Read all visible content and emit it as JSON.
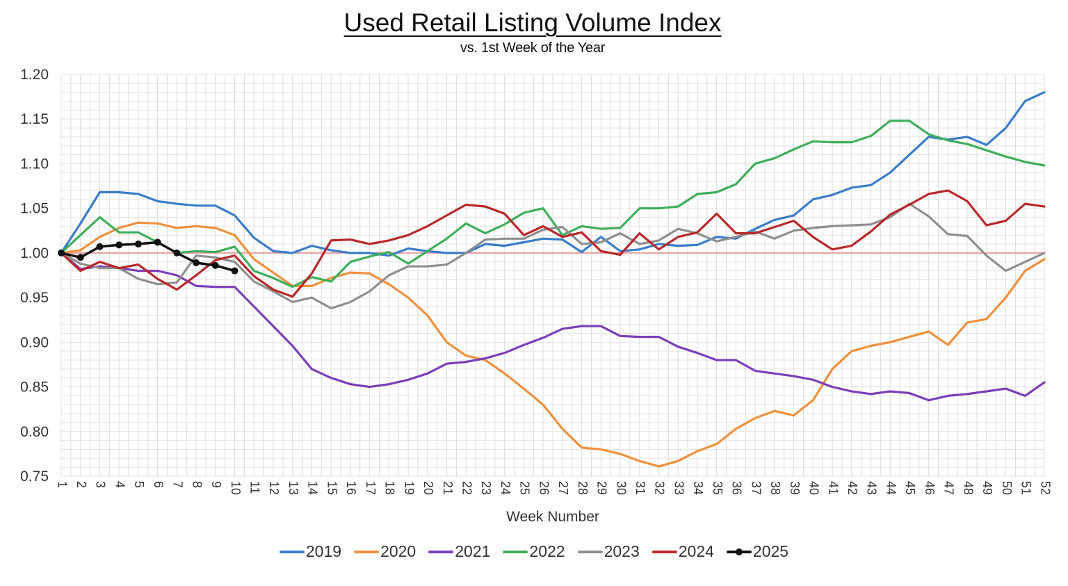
{
  "title": "Used Retail Listing Volume Index",
  "subtitle": "vs. 1st Week of the Year",
  "reference_line_color": "#e8a0a0",
  "chart_data": {
    "type": "line",
    "title": "Used Retail Listing Volume Index",
    "subtitle": "vs. 1st Week of the Year",
    "xlabel": "Week Number",
    "ylabel": "",
    "ylim": [
      0.75,
      1.2
    ],
    "yticks": [
      "1.20",
      "1.15",
      "1.10",
      "1.05",
      "1.00",
      "0.95",
      "0.90",
      "0.85",
      "0.80",
      "0.75"
    ],
    "grid": true,
    "legend_position": "bottom",
    "reference_line": 1.0,
    "x": [
      1,
      2,
      3,
      4,
      5,
      6,
      7,
      8,
      9,
      10,
      11,
      12,
      13,
      14,
      15,
      16,
      17,
      18,
      19,
      20,
      21,
      22,
      23,
      24,
      25,
      26,
      27,
      28,
      29,
      30,
      31,
      32,
      33,
      34,
      35,
      36,
      37,
      38,
      39,
      40,
      41,
      42,
      43,
      44,
      45,
      46,
      47,
      48,
      49,
      50,
      51,
      52
    ],
    "series": [
      {
        "name": "2019",
        "color": "#3a7dc9",
        "values": [
          1.0,
          1.033,
          1.068,
          1.068,
          1.066,
          1.058,
          1.055,
          1.053,
          1.053,
          1.042,
          1.017,
          1.002,
          1.0,
          1.008,
          1.003,
          1.0,
          1.0,
          0.997,
          1.005,
          1.002,
          1.0,
          1.0,
          1.01,
          1.008,
          1.012,
          1.016,
          1.015,
          1.001,
          1.018,
          1.002,
          1.004,
          1.01,
          1.008,
          1.009,
          1.018,
          1.016,
          1.027,
          1.037,
          1.042,
          1.06,
          1.065,
          1.073,
          1.076,
          1.09,
          1.11,
          1.13,
          1.127,
          1.13,
          1.121,
          1.14,
          1.17,
          1.18
        ]
      },
      {
        "name": "2020",
        "color": "#f0903d",
        "values": [
          1.0,
          1.003,
          1.018,
          1.028,
          1.034,
          1.033,
          1.028,
          1.03,
          1.028,
          1.02,
          0.993,
          0.978,
          0.963,
          0.963,
          0.972,
          0.978,
          0.977,
          0.965,
          0.95,
          0.93,
          0.9,
          0.885,
          0.88,
          0.865,
          0.848,
          0.83,
          0.803,
          0.782,
          0.78,
          0.775,
          0.767,
          0.761,
          0.767,
          0.778,
          0.786,
          0.803,
          0.815,
          0.823,
          0.818,
          0.835,
          0.87,
          0.89,
          0.896,
          0.9,
          0.906,
          0.912,
          0.897,
          0.922,
          0.926,
          0.95,
          0.98,
          0.993
        ]
      },
      {
        "name": "2021",
        "color": "#7b3fb8",
        "values": [
          1.0,
          0.982,
          0.985,
          0.983,
          0.98,
          0.98,
          0.975,
          0.963,
          0.962,
          0.962,
          0.94,
          0.918,
          0.896,
          0.87,
          0.86,
          0.853,
          0.85,
          0.853,
          0.858,
          0.865,
          0.876,
          0.878,
          0.882,
          0.888,
          0.897,
          0.905,
          0.915,
          0.918,
          0.918,
          0.907,
          0.906,
          0.906,
          0.895,
          0.888,
          0.88,
          0.88,
          0.868,
          0.865,
          0.862,
          0.858,
          0.85,
          0.845,
          0.842,
          0.845,
          0.843,
          0.835,
          0.84,
          0.842,
          0.845,
          0.848,
          0.84,
          0.855
        ]
      },
      {
        "name": "2022",
        "color": "#3fae5a",
        "values": [
          1.0,
          1.02,
          1.04,
          1.023,
          1.023,
          1.012,
          1.0,
          1.002,
          1.001,
          1.007,
          0.98,
          0.972,
          0.962,
          0.973,
          0.968,
          0.99,
          0.996,
          1.001,
          0.988,
          1.002,
          1.016,
          1.033,
          1.022,
          1.032,
          1.045,
          1.05,
          1.02,
          1.03,
          1.027,
          1.028,
          1.05,
          1.05,
          1.052,
          1.066,
          1.068,
          1.077,
          1.1,
          1.106,
          1.116,
          1.125,
          1.124,
          1.124,
          1.131,
          1.148,
          1.148,
          1.133,
          1.126,
          1.122,
          1.115,
          1.108,
          1.102,
          1.098
        ]
      },
      {
        "name": "2023",
        "color": "#8f8f8f",
        "values": [
          1.0,
          0.988,
          0.983,
          0.983,
          0.971,
          0.965,
          0.967,
          0.997,
          0.995,
          0.99,
          0.968,
          0.957,
          0.945,
          0.95,
          0.938,
          0.945,
          0.957,
          0.975,
          0.985,
          0.985,
          0.987,
          1.0,
          1.015,
          1.016,
          1.016,
          1.026,
          1.029,
          1.01,
          1.012,
          1.022,
          1.01,
          1.014,
          1.027,
          1.022,
          1.013,
          1.018,
          1.024,
          1.016,
          1.025,
          1.028,
          1.03,
          1.031,
          1.032,
          1.04,
          1.055,
          1.041,
          1.021,
          1.019,
          0.997,
          0.98,
          0.99,
          1.0
        ]
      },
      {
        "name": "2024",
        "color": "#b8282a",
        "values": [
          1.0,
          0.98,
          0.99,
          0.983,
          0.987,
          0.971,
          0.959,
          0.975,
          0.992,
          0.997,
          0.974,
          0.959,
          0.951,
          0.977,
          1.014,
          1.015,
          1.01,
          1.014,
          1.02,
          1.03,
          1.042,
          1.054,
          1.052,
          1.044,
          1.02,
          1.03,
          1.018,
          1.023,
          1.002,
          0.998,
          1.022,
          1.004,
          1.018,
          1.023,
          1.044,
          1.022,
          1.022,
          1.029,
          1.036,
          1.018,
          1.004,
          1.008,
          1.024,
          1.043,
          1.054,
          1.066,
          1.07,
          1.058,
          1.031,
          1.036,
          1.055,
          1.052
        ]
      },
      {
        "name": "2025",
        "color": "#111111",
        "marker": "circle",
        "values": [
          1.0,
          0.995,
          1.007,
          1.009,
          1.01,
          1.012,
          1.0,
          0.989,
          0.986,
          0.98
        ]
      }
    ]
  },
  "legend": [
    {
      "label": "2019",
      "color": "#3a7dc9"
    },
    {
      "label": "2020",
      "color": "#f0903d"
    },
    {
      "label": "2021",
      "color": "#7b3fb8"
    },
    {
      "label": "2022",
      "color": "#3fae5a"
    },
    {
      "label": "2023",
      "color": "#8f8f8f"
    },
    {
      "label": "2024",
      "color": "#b8282a"
    },
    {
      "label": "2025",
      "color": "#111111",
      "marker": true
    }
  ]
}
